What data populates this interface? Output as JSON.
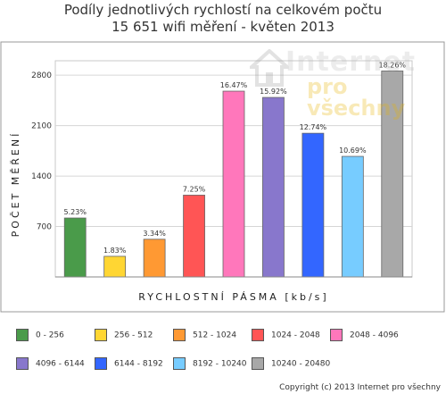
{
  "header": {
    "title_line1": "Podíly jednotlivých rychlostí na celkovém počtu",
    "title_line2": "15 651 wifi měření - květen 2013"
  },
  "watermark": {
    "line1": "Internet",
    "line2": "pro všechny"
  },
  "chart_data": {
    "type": "bar",
    "title": "Podíly jednotlivých rychlostí na celkovém počtu 15 651 wifi měření - květen 2013",
    "xlabel": "RYCHLOSTNÍ PÁSMA [kb/s]",
    "ylabel": "POČET MĚŘENÍ",
    "ylim": [
      0,
      3000
    ],
    "yticks": [
      "700",
      "1400",
      "2100",
      "2800"
    ],
    "ytick_values": [
      700,
      1400,
      2100,
      2800
    ],
    "grid": true,
    "legend_placement": "bottom",
    "categories": [
      "0 - 256",
      "256 - 512",
      "512 - 1024",
      "1024 - 2048",
      "2048 - 4096",
      "4096 - 6144",
      "6144 - 8192",
      "8192 - 10240",
      "10240 - 20480"
    ],
    "values": [
      818,
      286,
      523,
      1135,
      2578,
      2491,
      1994,
      1673,
      2858
    ],
    "labels": [
      "5.23%",
      "1.83%",
      "3.34%",
      "7.25%",
      "16.47%",
      "15.92%",
      "12.74%",
      "10.69%",
      "18.26%"
    ],
    "colors": [
      "#4a9b4a",
      "#ffd633",
      "#ff9933",
      "#ff5555",
      "#ff77bb",
      "#8877cc",
      "#3366ff",
      "#77ccff",
      "#a8a8a8"
    ]
  },
  "footer": {
    "copyright": "Copyright (c) 2013 Internet pro všechny"
  }
}
